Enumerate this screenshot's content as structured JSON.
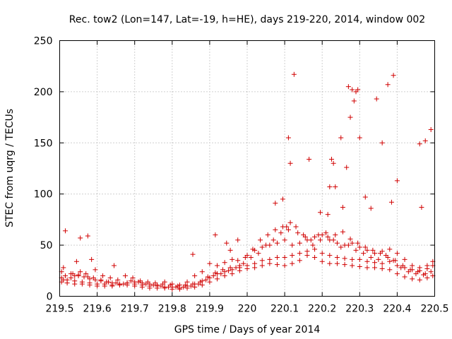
{
  "chart_data": {
    "type": "scatter",
    "title": "Rec. tow2 (Lon=147, Lat=-19, h=HE), days 219-220, 2014, window 002",
    "xlabel": "GPS time / Days of year 2014",
    "ylabel": "STEC from uqrg / TECUs",
    "xlim": [
      219.5,
      220.5
    ],
    "ylim": [
      0,
      250
    ],
    "x_ticks": [
      219.5,
      219.6,
      219.7,
      219.8,
      219.9,
      220.0,
      220.1,
      220.2,
      220.3,
      220.4,
      220.5
    ],
    "x_tick_labels": [
      "219.5",
      "219.6",
      "219.7",
      "219.8",
      "219.9",
      "220",
      "220.1",
      "220.2",
      "220.3",
      "220.4",
      "220.5"
    ],
    "y_ticks": [
      0,
      50,
      100,
      150,
      200,
      250
    ],
    "y_tick_labels": [
      "0",
      "50",
      "100",
      "150",
      "200",
      "250"
    ],
    "grid": true,
    "marker": "plus",
    "series_color": "#d00000",
    "series": [
      {
        "name": "STEC",
        "x": [
          219.505,
          219.51,
          219.53,
          219.54,
          219.55,
          219.565,
          219.58,
          219.595,
          219.61,
          219.625,
          219.64,
          219.66,
          219.68,
          219.7,
          219.72,
          219.74,
          219.76,
          219.78,
          219.8,
          219.82,
          219.84,
          219.86,
          219.88,
          219.9,
          219.92,
          219.94,
          219.96,
          219.98,
          220.0,
          220.02,
          220.04,
          220.06,
          220.08,
          220.1,
          220.12,
          220.14,
          220.16,
          220.18,
          220.2,
          220.22,
          220.24,
          220.26,
          220.28,
          220.3,
          220.32,
          220.34,
          220.36,
          220.38,
          220.4,
          220.42,
          220.44,
          220.46,
          220.48,
          220.495,
          219.505,
          219.52,
          219.54,
          219.56,
          219.58,
          219.6,
          219.62,
          219.64,
          219.66,
          219.68,
          219.7,
          219.72,
          219.74,
          219.76,
          219.78,
          219.8,
          219.82,
          219.84,
          219.86,
          219.88,
          219.9,
          219.92,
          219.94,
          219.96,
          219.98,
          220.0,
          220.02,
          220.04,
          220.06,
          220.08,
          220.1,
          220.12,
          220.14,
          220.16,
          220.18,
          220.2,
          220.22,
          220.24,
          220.26,
          220.28,
          220.3,
          220.32,
          220.34,
          220.36,
          220.38,
          220.4,
          220.42,
          220.44,
          220.46,
          220.48,
          220.495,
          219.505,
          219.52,
          219.54,
          219.56,
          219.58,
          219.6,
          219.62,
          219.64,
          219.66,
          219.68,
          219.7,
          219.72,
          219.74,
          219.76,
          219.78,
          219.8,
          219.82,
          219.84,
          219.86,
          219.88,
          219.9,
          219.92,
          219.94,
          219.96,
          219.98,
          220.0,
          220.02,
          220.04,
          220.06,
          220.08,
          220.1,
          220.12,
          220.14,
          220.16,
          220.18,
          220.2,
          220.22,
          220.24,
          220.26,
          220.28,
          220.3,
          220.32,
          220.34,
          220.36,
          220.38,
          220.4,
          220.42,
          220.44,
          220.46,
          220.48,
          220.495,
          219.51,
          219.53,
          219.55,
          219.57,
          219.59,
          219.61,
          219.63,
          219.65,
          219.67,
          219.69,
          219.71,
          219.73,
          219.75,
          219.77,
          219.79,
          219.81,
          219.83,
          219.85,
          219.87,
          219.89,
          219.91,
          219.93,
          219.95,
          219.97,
          219.99,
          220.01,
          220.03,
          220.05,
          220.07,
          220.09,
          220.11,
          220.13,
          220.15,
          220.17,
          220.19,
          220.21,
          220.23,
          220.25,
          220.27,
          220.29,
          220.31,
          220.33,
          220.35,
          220.37,
          220.39,
          220.41,
          220.43,
          220.45,
          220.47,
          220.49,
          219.515,
          219.535,
          219.555,
          219.575,
          219.595,
          219.615,
          219.635,
          219.655,
          219.675,
          219.695,
          219.715,
          219.735,
          219.755,
          219.775,
          219.795,
          219.815,
          219.835,
          219.855,
          219.875,
          219.895,
          219.915,
          219.935,
          219.955,
          219.975,
          219.995,
          220.015,
          220.035,
          220.055,
          220.075,
          220.095,
          220.115,
          220.135,
          220.155,
          220.175,
          220.195,
          220.215,
          220.235,
          220.255,
          220.275,
          220.295,
          220.315,
          220.335,
          220.355,
          220.375,
          220.395,
          220.415,
          220.435,
          220.455,
          220.475,
          219.515,
          219.545,
          219.555,
          219.575,
          219.585,
          219.645,
          219.855,
          219.915,
          219.945,
          219.955,
          219.975,
          220.075,
          220.095,
          220.105,
          220.11,
          220.115,
          220.125,
          220.165,
          220.195,
          220.215,
          220.22,
          220.225,
          220.23,
          220.235,
          220.25,
          220.255,
          220.265,
          220.27,
          220.275,
          220.28,
          220.285,
          220.29,
          220.295,
          220.3,
          220.315,
          220.33,
          220.345,
          220.36,
          220.375,
          220.385,
          220.39,
          220.4,
          220.46,
          220.465,
          220.475,
          220.49
        ],
        "y": [
          24,
          28,
          22,
          20,
          21,
          19,
          17,
          16,
          15,
          14,
          13,
          12,
          13,
          14,
          13,
          12,
          11,
          14,
          12,
          11,
          14,
          20,
          24,
          32,
          30,
          33,
          36,
          30,
          40,
          45,
          48,
          50,
          52,
          55,
          50,
          52,
          55,
          58,
          60,
          55,
          52,
          50,
          52,
          48,
          45,
          42,
          44,
          46,
          42,
          36,
          30,
          28,
          30,
          34,
          18,
          16,
          15,
          14,
          13,
          12,
          12,
          11,
          12,
          13,
          12,
          11,
          10,
          10,
          9,
          9,
          8,
          10,
          12,
          15,
          18,
          22,
          24,
          26,
          28,
          30,
          32,
          35,
          36,
          38,
          38,
          40,
          42,
          44,
          46,
          42,
          40,
          38,
          37,
          36,
          36,
          34,
          33,
          32,
          34,
          30,
          28,
          26,
          25,
          27,
          30,
          14,
          13,
          12,
          12,
          11,
          10,
          10,
          10,
          11,
          11,
          10,
          9,
          8,
          8,
          8,
          7,
          7,
          8,
          9,
          11,
          14,
          17,
          20,
          22,
          25,
          27,
          28,
          30,
          32,
          31,
          30,
          32,
          35,
          40,
          38,
          34,
          32,
          32,
          31,
          30,
          29,
          28,
          28,
          27,
          26,
          22,
          19,
          17,
          16,
          18,
          20,
          16,
          18,
          20,
          22,
          18,
          16,
          14,
          13,
          12,
          15,
          14,
          12,
          11,
          10,
          9,
          9,
          9,
          10,
          12,
          16,
          20,
          22,
          25,
          28,
          32,
          38,
          42,
          50,
          55,
          62,
          65,
          68,
          60,
          55,
          60,
          62,
          55,
          48,
          50,
          45,
          42,
          38,
          36,
          40,
          35,
          28,
          24,
          22,
          21,
          24,
          20,
          22,
          24,
          19,
          26,
          20,
          18,
          16,
          20,
          18,
          15,
          14,
          13,
          12,
          11,
          10,
          11,
          12,
          14,
          19,
          23,
          26,
          28,
          35,
          38,
          46,
          55,
          60,
          65,
          68,
          72,
          62,
          58,
          50,
          55,
          58,
          60,
          63,
          56,
          52,
          48,
          45,
          42,
          38,
          35,
          30,
          26,
          24,
          22,
          64,
          34,
          57,
          59,
          36,
          30,
          41,
          60,
          52,
          45,
          55,
          91,
          95,
          68,
          155,
          130,
          217,
          134,
          82,
          80,
          107,
          134,
          130,
          107,
          155,
          87,
          126,
          205,
          175,
          202,
          191,
          200,
          202,
          155,
          97,
          86,
          193,
          150,
          207,
          92,
          216,
          113,
          149,
          87,
          152,
          163
        ]
      }
    ]
  }
}
